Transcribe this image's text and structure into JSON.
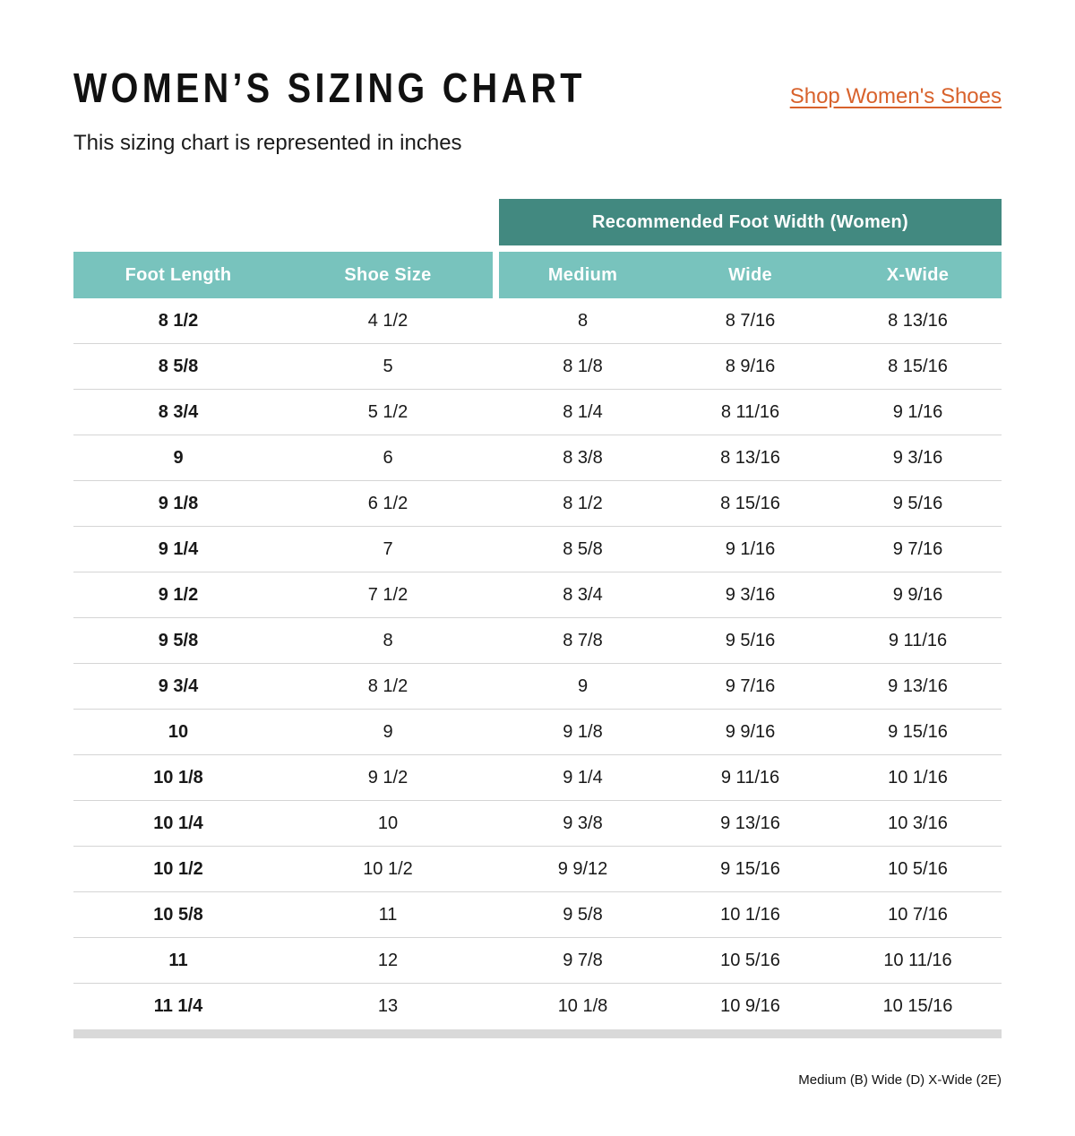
{
  "page": {
    "title": "WOMEN’S SIZING CHART",
    "subtitle": "This sizing chart is represented in inches",
    "shop_link": "Shop Women's Shoes",
    "footnote": "Medium (B) Wide (D) X-Wide (2E)"
  },
  "colors": {
    "dark_teal": "#428980",
    "light_teal": "#78C3BD",
    "link_orange": "#D8622C",
    "row_divider": "#D5D5D5",
    "bottom_bar": "#D9D9D9"
  },
  "table": {
    "group_header": "Recommended Foot Width (Women)",
    "columns": [
      "Foot Length",
      "Shoe Size",
      "Medium",
      "Wide",
      "X-Wide"
    ],
    "rows": [
      [
        "8 1/2",
        "4 1/2",
        "8",
        "8 7/16",
        "8 13/16"
      ],
      [
        "8 5/8",
        "5",
        "8 1/8",
        "8 9/16",
        "8 15/16"
      ],
      [
        "8 3/4",
        "5 1/2",
        "8 1/4",
        "8 11/16",
        "9 1/16"
      ],
      [
        "9",
        "6",
        "8 3/8",
        "8 13/16",
        "9 3/16"
      ],
      [
        "9 1/8",
        "6 1/2",
        "8 1/2",
        "8 15/16",
        "9 5/16"
      ],
      [
        "9 1/4",
        "7",
        "8 5/8",
        "9 1/16",
        "9 7/16"
      ],
      [
        "9 1/2",
        "7 1/2",
        "8 3/4",
        "9 3/16",
        "9 9/16"
      ],
      [
        "9 5/8",
        "8",
        "8 7/8",
        "9 5/16",
        "9 11/16"
      ],
      [
        "9 3/4",
        "8 1/2",
        "9",
        "9 7/16",
        "9 13/16"
      ],
      [
        "10",
        "9",
        "9 1/8",
        "9 9/16",
        "9 15/16"
      ],
      [
        "10 1/8",
        "9 1/2",
        "9 1/4",
        "9 11/16",
        "10 1/16"
      ],
      [
        "10 1/4",
        "10",
        "9 3/8",
        "9 13/16",
        "10 3/16"
      ],
      [
        "10 1/2",
        "10 1/2",
        "9 9/12",
        "9 15/16",
        "10 5/16"
      ],
      [
        "10 5/8",
        "11",
        "9 5/8",
        "10 1/16",
        "10 7/16"
      ],
      [
        "11",
        "12",
        "9 7/8",
        "10 5/16",
        "10 11/16"
      ],
      [
        "11 1/4",
        "13",
        "10 1/8",
        "10 9/16",
        "10 15/16"
      ]
    ]
  }
}
